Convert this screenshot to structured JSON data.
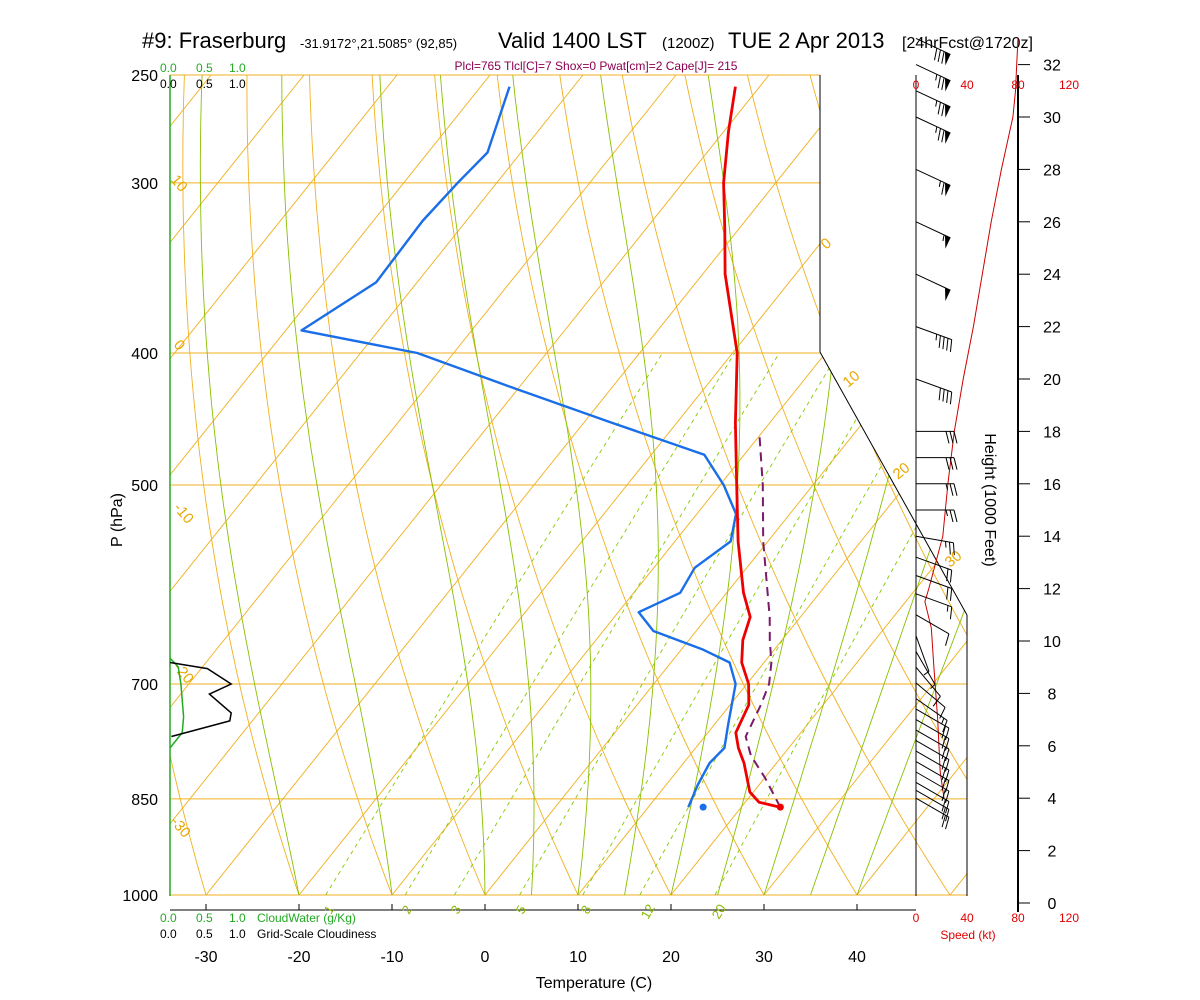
{
  "title": {
    "station": "#9: Fraserburg",
    "coords": "-31.9172°,21.5085° (92,85)",
    "valid": "Valid 1400 LST",
    "utc": "(1200Z)",
    "date": "TUE 2 Apr 2013",
    "forecast": "[24hrFcst@1720z]"
  },
  "subtitle": "Plcl=765 Tlcl[C]=7 Shox=0 Pwat[cm]=2 Cape[J]= 215",
  "cloud": {
    "water_label": "CloudWater (g/Kg)",
    "cloudiness_label": "Grid-Scale Cloudiness",
    "top_green_ticks": [
      "0.0",
      "0.5",
      "1.0"
    ],
    "top_black_ticks": [
      "0.0",
      "0.5",
      "1.0"
    ],
    "bottom_green_ticks": [
      "0.0",
      "0.5",
      "1.0"
    ],
    "bottom_black_ticks": [
      "0.0",
      "0.5",
      "1.0"
    ],
    "water_color": "#22aa22",
    "cloudiness_color": "#000000"
  },
  "axes": {
    "xlabel": "Temperature (C)",
    "ylabel": "P (hPa)",
    "x_ticks": [
      "-30",
      "-20",
      "-10",
      "0",
      "10",
      "20",
      "30",
      "40"
    ],
    "p_ticks": [
      "250",
      "300",
      "400",
      "500",
      "700",
      "850",
      "1000"
    ],
    "height_label": "Height (1000 Feet)",
    "height_ticks": [
      "0",
      "2",
      "4",
      "6",
      "8",
      "10",
      "12",
      "14",
      "16",
      "18",
      "20",
      "22",
      "24",
      "26",
      "28",
      "30",
      "32"
    ],
    "speed_label": "Speed (kt)",
    "speed_ticks_top": [
      "0",
      "40",
      "80",
      "120"
    ],
    "speed_ticks_bottom": [
      "0",
      "40",
      "80",
      "120"
    ]
  },
  "isotherm_labels": [
    "10",
    "0",
    "-10",
    "-20",
    "-30",
    "0",
    "10",
    "20",
    "30"
  ],
  "mixing_ratio_labels": [
    "1",
    "2",
    "3",
    "5",
    "8",
    "12",
    "20"
  ],
  "colors": {
    "temperature": "#ee0000",
    "dewpoint": "#1a6ee8",
    "parcel": "#7a1a6a",
    "isobar": "#f0b020",
    "dry_adiabat": "#f0b020",
    "moist_adiabat": "#88c000",
    "mixing_ratio": "#88c800",
    "wind_speed": "#cc0000"
  },
  "chart_data": {
    "type": "skew-t",
    "x_range_c": [
      -33,
      45
    ],
    "p_range_hpa": [
      1000,
      250
    ],
    "temperature_profile": [
      {
        "p": 862,
        "t": 24.2
      },
      {
        "p": 855,
        "t": 21.5
      },
      {
        "p": 840,
        "t": 19.6
      },
      {
        "p": 800,
        "t": 16.5
      },
      {
        "p": 780,
        "t": 14.6
      },
      {
        "p": 760,
        "t": 13.0
      },
      {
        "p": 725,
        "t": 12.0
      },
      {
        "p": 700,
        "t": 10.2
      },
      {
        "p": 675,
        "t": 7.6
      },
      {
        "p": 650,
        "t": 5.8
      },
      {
        "p": 625,
        "t": 4.6
      },
      {
        "p": 600,
        "t": 1.8
      },
      {
        "p": 550,
        "t": -3.2
      },
      {
        "p": 500,
        "t": -8.2
      },
      {
        "p": 450,
        "t": -13.7
      },
      {
        "p": 400,
        "t": -19.5
      },
      {
        "p": 350,
        "t": -27.6
      },
      {
        "p": 325,
        "t": -31.4
      },
      {
        "p": 300,
        "t": -35.6
      },
      {
        "p": 275,
        "t": -39.5
      },
      {
        "p": 255,
        "t": -42.6
      }
    ],
    "dewpoint_profile": [
      {
        "p": 862,
        "t": 14.3
      },
      {
        "p": 830,
        "t": 13.4
      },
      {
        "p": 800,
        "t": 12.8
      },
      {
        "p": 780,
        "t": 13.1
      },
      {
        "p": 750,
        "t": 11.5
      },
      {
        "p": 700,
        "t": 8.8
      },
      {
        "p": 675,
        "t": 6.3
      },
      {
        "p": 660,
        "t": 2.2
      },
      {
        "p": 640,
        "t": -4.6
      },
      {
        "p": 620,
        "t": -7.8
      },
      {
        "p": 600,
        "t": -5.0
      },
      {
        "p": 575,
        "t": -5.6
      },
      {
        "p": 550,
        "t": -4.0
      },
      {
        "p": 525,
        "t": -5.8
      },
      {
        "p": 500,
        "t": -9.6
      },
      {
        "p": 475,
        "t": -14.3
      },
      {
        "p": 450,
        "t": -27.0
      },
      {
        "p": 425,
        "t": -40.2
      },
      {
        "p": 400,
        "t": -53.9
      },
      {
        "p": 385,
        "t": -68.3
      },
      {
        "p": 355,
        "t": -64.4
      },
      {
        "p": 320,
        "t": -64.7
      },
      {
        "p": 300,
        "t": -64.2
      },
      {
        "p": 285,
        "t": -63.6
      },
      {
        "p": 255,
        "t": -66.9
      }
    ],
    "parcel_profile": [
      {
        "p": 862,
        "t": 24.2
      },
      {
        "p": 820,
        "t": 20.0
      },
      {
        "p": 790,
        "t": 16.6
      },
      {
        "p": 765,
        "t": 14.4
      },
      {
        "p": 725,
        "t": 13.3
      },
      {
        "p": 700,
        "t": 12.4
      },
      {
        "p": 675,
        "t": 10.8
      },
      {
        "p": 650,
        "t": 8.7
      },
      {
        "p": 625,
        "t": 6.7
      },
      {
        "p": 600,
        "t": 4.4
      },
      {
        "p": 550,
        "t": -0.5
      },
      {
        "p": 500,
        "t": -5.4
      },
      {
        "p": 460,
        "t": -10.0
      }
    ],
    "surface_temp_marker": {
      "p": 862,
      "t": 24.2
    },
    "surface_dew_marker": {
      "p": 862,
      "t": 15.9
    },
    "cloud_water_profile": [
      {
        "p": 670,
        "v": 0.0
      },
      {
        "p": 680,
        "v": 0.12
      },
      {
        "p": 700,
        "v": 0.16
      },
      {
        "p": 740,
        "v": 0.2
      },
      {
        "p": 760,
        "v": 0.18
      },
      {
        "p": 780,
        "v": 0.0
      }
    ],
    "cloudiness_profile": [
      {
        "p": 675,
        "v": 0.0
      },
      {
        "p": 682,
        "v": 0.55
      },
      {
        "p": 700,
        "v": 0.9
      },
      {
        "p": 712,
        "v": 0.58
      },
      {
        "p": 735,
        "v": 0.9
      },
      {
        "p": 745,
        "v": 0.88
      },
      {
        "p": 765,
        "v": 0.02
      }
    ],
    "wind_speed_profile_kt": [
      {
        "h": 4.0,
        "s": 22
      },
      {
        "h": 5.0,
        "s": 19
      },
      {
        "h": 7.0,
        "s": 17
      },
      {
        "h": 9.0,
        "s": 14
      },
      {
        "h": 10.5,
        "s": 12
      },
      {
        "h": 11.5,
        "s": 7
      },
      {
        "h": 12.0,
        "s": 10
      },
      {
        "h": 14.0,
        "s": 21
      },
      {
        "h": 16.0,
        "s": 25
      },
      {
        "h": 18.0,
        "s": 30
      },
      {
        "h": 20.0,
        "s": 37
      },
      {
        "h": 22.0,
        "s": 45
      },
      {
        "h": 24.0,
        "s": 52
      },
      {
        "h": 26.0,
        "s": 59
      },
      {
        "h": 28.0,
        "s": 67
      },
      {
        "h": 30.0,
        "s": 76
      },
      {
        "h": 31.0,
        "s": 78
      },
      {
        "h": 32.0,
        "s": 79
      },
      {
        "h": 33.0,
        "s": 80
      }
    ],
    "wind_barbs": [
      {
        "h": 4.0,
        "dir": 300,
        "spd": 20
      },
      {
        "h": 4.3,
        "dir": 300,
        "spd": 20
      },
      {
        "h": 4.6,
        "dir": 300,
        "spd": 20
      },
      {
        "h": 5.0,
        "dir": 300,
        "spd": 20
      },
      {
        "h": 5.4,
        "dir": 300,
        "spd": 20
      },
      {
        "h": 5.8,
        "dir": 300,
        "spd": 20
      },
      {
        "h": 6.2,
        "dir": 300,
        "spd": 20
      },
      {
        "h": 6.6,
        "dir": 300,
        "spd": 20
      },
      {
        "h": 7.0,
        "dir": 300,
        "spd": 20
      },
      {
        "h": 7.4,
        "dir": 300,
        "spd": 20
      },
      {
        "h": 7.8,
        "dir": 305,
        "spd": 15
      },
      {
        "h": 8.4,
        "dir": 310,
        "spd": 10
      },
      {
        "h": 9.0,
        "dir": 320,
        "spd": 10
      },
      {
        "h": 9.6,
        "dir": 330,
        "spd": 5
      },
      {
        "h": 10.2,
        "dir": 340,
        "spd": 5
      },
      {
        "h": 11.0,
        "dir": 300,
        "spd": 10
      },
      {
        "h": 11.8,
        "dir": 290,
        "spd": 15
      },
      {
        "h": 12.5,
        "dir": 290,
        "spd": 20
      },
      {
        "h": 13.2,
        "dir": 290,
        "spd": 20
      },
      {
        "h": 14.0,
        "dir": 280,
        "spd": 25
      },
      {
        "h": 15.0,
        "dir": 270,
        "spd": 25
      },
      {
        "h": 16.0,
        "dir": 270,
        "spd": 25
      },
      {
        "h": 17.0,
        "dir": 270,
        "spd": 30
      },
      {
        "h": 18.0,
        "dir": 270,
        "spd": 30
      },
      {
        "h": 20.0,
        "dir": 290,
        "spd": 40
      },
      {
        "h": 22.0,
        "dir": 290,
        "spd": 45
      },
      {
        "h": 24.0,
        "dir": 295,
        "spd": 50
      },
      {
        "h": 26.0,
        "dir": 295,
        "spd": 55
      },
      {
        "h": 28.0,
        "dir": 295,
        "spd": 65
      },
      {
        "h": 30.0,
        "dir": 295,
        "spd": 75
      },
      {
        "h": 31.0,
        "dir": 295,
        "spd": 75
      },
      {
        "h": 32.0,
        "dir": 295,
        "spd": 75
      },
      {
        "h": 33.0,
        "dir": 295,
        "spd": 80
      }
    ]
  }
}
